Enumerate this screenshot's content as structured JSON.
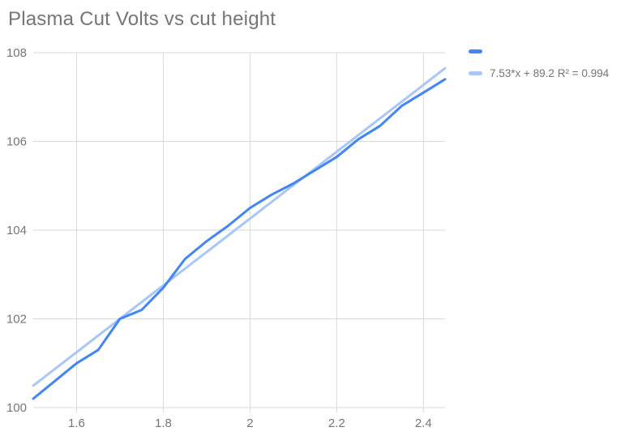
{
  "title": "Plasma Cut Volts vs cut height",
  "colors": {
    "series": "#4285f4",
    "trendline": "#a8c7f8",
    "gridline": "#d9d9d9",
    "axis_text": "#757575",
    "title_text": "#757575",
    "background": "#ffffff"
  },
  "legend": {
    "entries": [
      {
        "label": "",
        "color": "#4285f4"
      },
      {
        "label": "7.53*x + 89.2 R² = 0.994",
        "color": "#a8c7f8"
      }
    ]
  },
  "chart_data": {
    "type": "line",
    "title": "Plasma Cut Volts vs cut height",
    "xlabel": "",
    "ylabel": "",
    "xlim": [
      1.5,
      2.45
    ],
    "ylim": [
      100,
      108
    ],
    "x_ticks": [
      1.6,
      1.8,
      2,
      2.2,
      2.4
    ],
    "y_ticks": [
      100,
      102,
      104,
      106,
      108
    ],
    "grid": true,
    "legend_position": "top-right",
    "series": [
      {
        "name": "",
        "color": "#4285f4",
        "x": [
          1.5,
          1.55,
          1.6,
          1.65,
          1.7,
          1.75,
          1.8,
          1.85,
          1.9,
          1.95,
          2.0,
          2.05,
          2.1,
          2.15,
          2.2,
          2.25,
          2.3,
          2.35,
          2.4,
          2.45
        ],
        "y": [
          100.2,
          100.6,
          101.0,
          101.3,
          102.0,
          102.2,
          102.7,
          103.35,
          103.75,
          104.1,
          104.5,
          104.8,
          105.05,
          105.35,
          105.65,
          106.05,
          106.35,
          106.8,
          107.1,
          107.4
        ]
      }
    ],
    "trendline": {
      "label": "7.53*x + 89.2 R² = 0.994",
      "slope": 7.53,
      "intercept": 89.2,
      "r2": 0.994,
      "color": "#a8c7f8"
    }
  }
}
